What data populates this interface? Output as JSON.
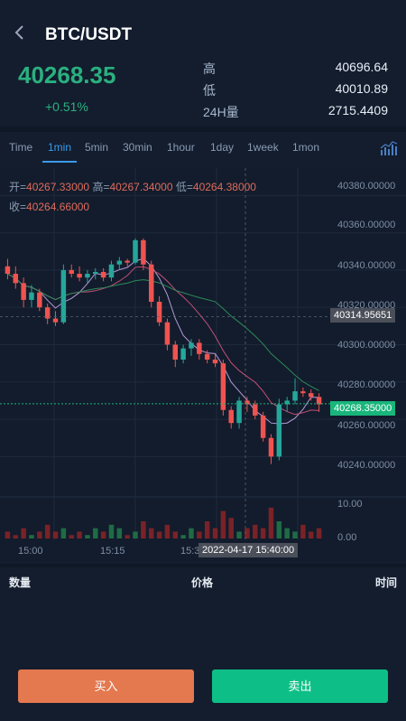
{
  "header": {
    "title": "BTC/USDT"
  },
  "ticker": {
    "price": "40268.35",
    "change": "+0.51%",
    "high_label": "高",
    "high": "40696.64",
    "low_label": "低",
    "low": "40010.89",
    "vol_label": "24H量",
    "vol": "2715.4409"
  },
  "tabs": [
    "Time",
    "1min",
    "5min",
    "30min",
    "1hour",
    "1day",
    "1week",
    "1mon"
  ],
  "active_tab": "1min",
  "ohlc": {
    "open_label": "开=",
    "open": "40267.33000",
    "high_label": "高=",
    "high": "40267.34000",
    "low_label": "低=",
    "low": "40264.38000",
    "close_label": "收=",
    "close": "40264.66000"
  },
  "colors": {
    "up": "#26a69a",
    "down": "#ef5350",
    "up_text": "#2ab07f",
    "buy": "#e4784f",
    "sell": "#0dbf86",
    "accent": "#3b9be8"
  },
  "chart_data": {
    "type": "candlestick",
    "ylim": [
      40230,
      40385
    ],
    "y_ticks": [
      "40380.00000",
      "40360.00000",
      "40340.00000",
      "40320.00000",
      "40300.00000",
      "40280.00000",
      "40260.00000",
      "40240.00000"
    ],
    "volume_ticks": [
      "10.00",
      "0.00"
    ],
    "x_ticks": [
      "15:00",
      "15:15",
      "15:30"
    ],
    "crosshair_price": "40314.95651",
    "crosshair_time": "2022-04-17 15:40:00",
    "last_price": "40268.35000",
    "candles": [
      {
        "o": 40342,
        "h": 40346,
        "l": 40335,
        "c": 40338
      },
      {
        "o": 40338,
        "h": 40342,
        "l": 40330,
        "c": 40333
      },
      {
        "o": 40333,
        "h": 40336,
        "l": 40320,
        "c": 40324
      },
      {
        "o": 40324,
        "h": 40332,
        "l": 40320,
        "c": 40328
      },
      {
        "o": 40328,
        "h": 40330,
        "l": 40318,
        "c": 40320
      },
      {
        "o": 40320,
        "h": 40322,
        "l": 40311,
        "c": 40314
      },
      {
        "o": 40314,
        "h": 40318,
        "l": 40310,
        "c": 40312
      },
      {
        "o": 40312,
        "h": 40343,
        "l": 40311,
        "c": 40340
      },
      {
        "o": 40340,
        "h": 40343,
        "l": 40336,
        "c": 40338
      },
      {
        "o": 40338,
        "h": 40342,
        "l": 40334,
        "c": 40336
      },
      {
        "o": 40336,
        "h": 40340,
        "l": 40333,
        "c": 40338
      },
      {
        "o": 40338,
        "h": 40341,
        "l": 40335,
        "c": 40339
      },
      {
        "o": 40339,
        "h": 40341,
        "l": 40334,
        "c": 40336
      },
      {
        "o": 40336,
        "h": 40345,
        "l": 40334,
        "c": 40343
      },
      {
        "o": 40343,
        "h": 40347,
        "l": 40340,
        "c": 40345
      },
      {
        "o": 40345,
        "h": 40346,
        "l": 40342,
        "c": 40344
      },
      {
        "o": 40344,
        "h": 40357,
        "l": 40343,
        "c": 40356
      },
      {
        "o": 40356,
        "h": 40357,
        "l": 40340,
        "c": 40343
      },
      {
        "o": 40343,
        "h": 40345,
        "l": 40320,
        "c": 40323
      },
      {
        "o": 40323,
        "h": 40326,
        "l": 40310,
        "c": 40312
      },
      {
        "o": 40312,
        "h": 40314,
        "l": 40297,
        "c": 40300
      },
      {
        "o": 40300,
        "h": 40302,
        "l": 40288,
        "c": 40292
      },
      {
        "o": 40292,
        "h": 40300,
        "l": 40290,
        "c": 40298
      },
      {
        "o": 40298,
        "h": 40303,
        "l": 40294,
        "c": 40301
      },
      {
        "o": 40301,
        "h": 40303,
        "l": 40292,
        "c": 40295
      },
      {
        "o": 40295,
        "h": 40297,
        "l": 40290,
        "c": 40292
      },
      {
        "o": 40292,
        "h": 40295,
        "l": 40288,
        "c": 40290
      },
      {
        "o": 40290,
        "h": 40292,
        "l": 40262,
        "c": 40265
      },
      {
        "o": 40265,
        "h": 40267,
        "l": 40255,
        "c": 40258
      },
      {
        "o": 40258,
        "h": 40272,
        "l": 40255,
        "c": 40270
      },
      {
        "o": 40270,
        "h": 40272,
        "l": 40264,
        "c": 40268
      },
      {
        "o": 40268,
        "h": 40270,
        "l": 40260,
        "c": 40262
      },
      {
        "o": 40262,
        "h": 40264,
        "l": 40248,
        "c": 40250
      },
      {
        "o": 40250,
        "h": 40252,
        "l": 40236,
        "c": 40240
      },
      {
        "o": 40240,
        "h": 40271,
        "l": 40238,
        "c": 40268
      },
      {
        "o": 40268,
        "h": 40272,
        "l": 40264,
        "c": 40270
      },
      {
        "o": 40270,
        "h": 40282,
        "l": 40268,
        "c": 40275
      },
      {
        "o": 40275,
        "h": 40277,
        "l": 40272,
        "c": 40274
      },
      {
        "o": 40274,
        "h": 40276,
        "l": 40270,
        "c": 40272
      },
      {
        "o": 40272,
        "h": 40274,
        "l": 40264,
        "c": 40268
      }
    ],
    "volumes": [
      2,
      1,
      3,
      1,
      2,
      4,
      2,
      3,
      1,
      2,
      1,
      3,
      2,
      4,
      3,
      1,
      2,
      5,
      3,
      2,
      4,
      2,
      1,
      3,
      2,
      5,
      3,
      8,
      6,
      2,
      3,
      4,
      3,
      9,
      5,
      3,
      2,
      4,
      2,
      3
    ]
  },
  "list_headers": {
    "qty": "数量",
    "price": "价格",
    "time": "时间"
  },
  "buttons": {
    "buy": "买入",
    "sell": "卖出"
  }
}
